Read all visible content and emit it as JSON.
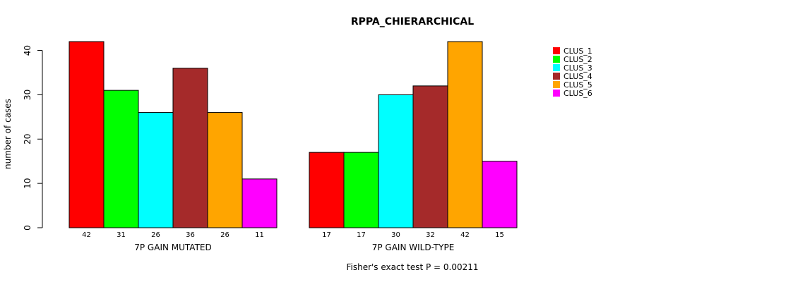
{
  "chart_data": {
    "type": "bar",
    "title": "RPPA_CHIERARCHICAL",
    "ylabel": "number of cases",
    "ylim": [
      0,
      42
    ],
    "yticks": [
      0,
      10,
      20,
      30,
      40
    ],
    "groups": [
      {
        "label": "7P GAIN MUTATED",
        "values": [
          42,
          31,
          26,
          36,
          26,
          11
        ]
      },
      {
        "label": "7P GAIN WILD-TYPE",
        "values": [
          17,
          17,
          30,
          32,
          42,
          15
        ]
      }
    ],
    "series": [
      {
        "name": "CLUS_1",
        "color": "#ff0000"
      },
      {
        "name": "CLUS_2",
        "color": "#00ff00"
      },
      {
        "name": "CLUS_3",
        "color": "#00ffff"
      },
      {
        "name": "CLUS_4",
        "color": "#a52a2a"
      },
      {
        "name": "CLUS_5",
        "color": "#ffa500"
      },
      {
        "name": "CLUS_6",
        "color": "#ff00ff"
      }
    ],
    "legend_position": "top-right",
    "grid": false,
    "footer": "Fisher's exact test P = 0.00211"
  }
}
